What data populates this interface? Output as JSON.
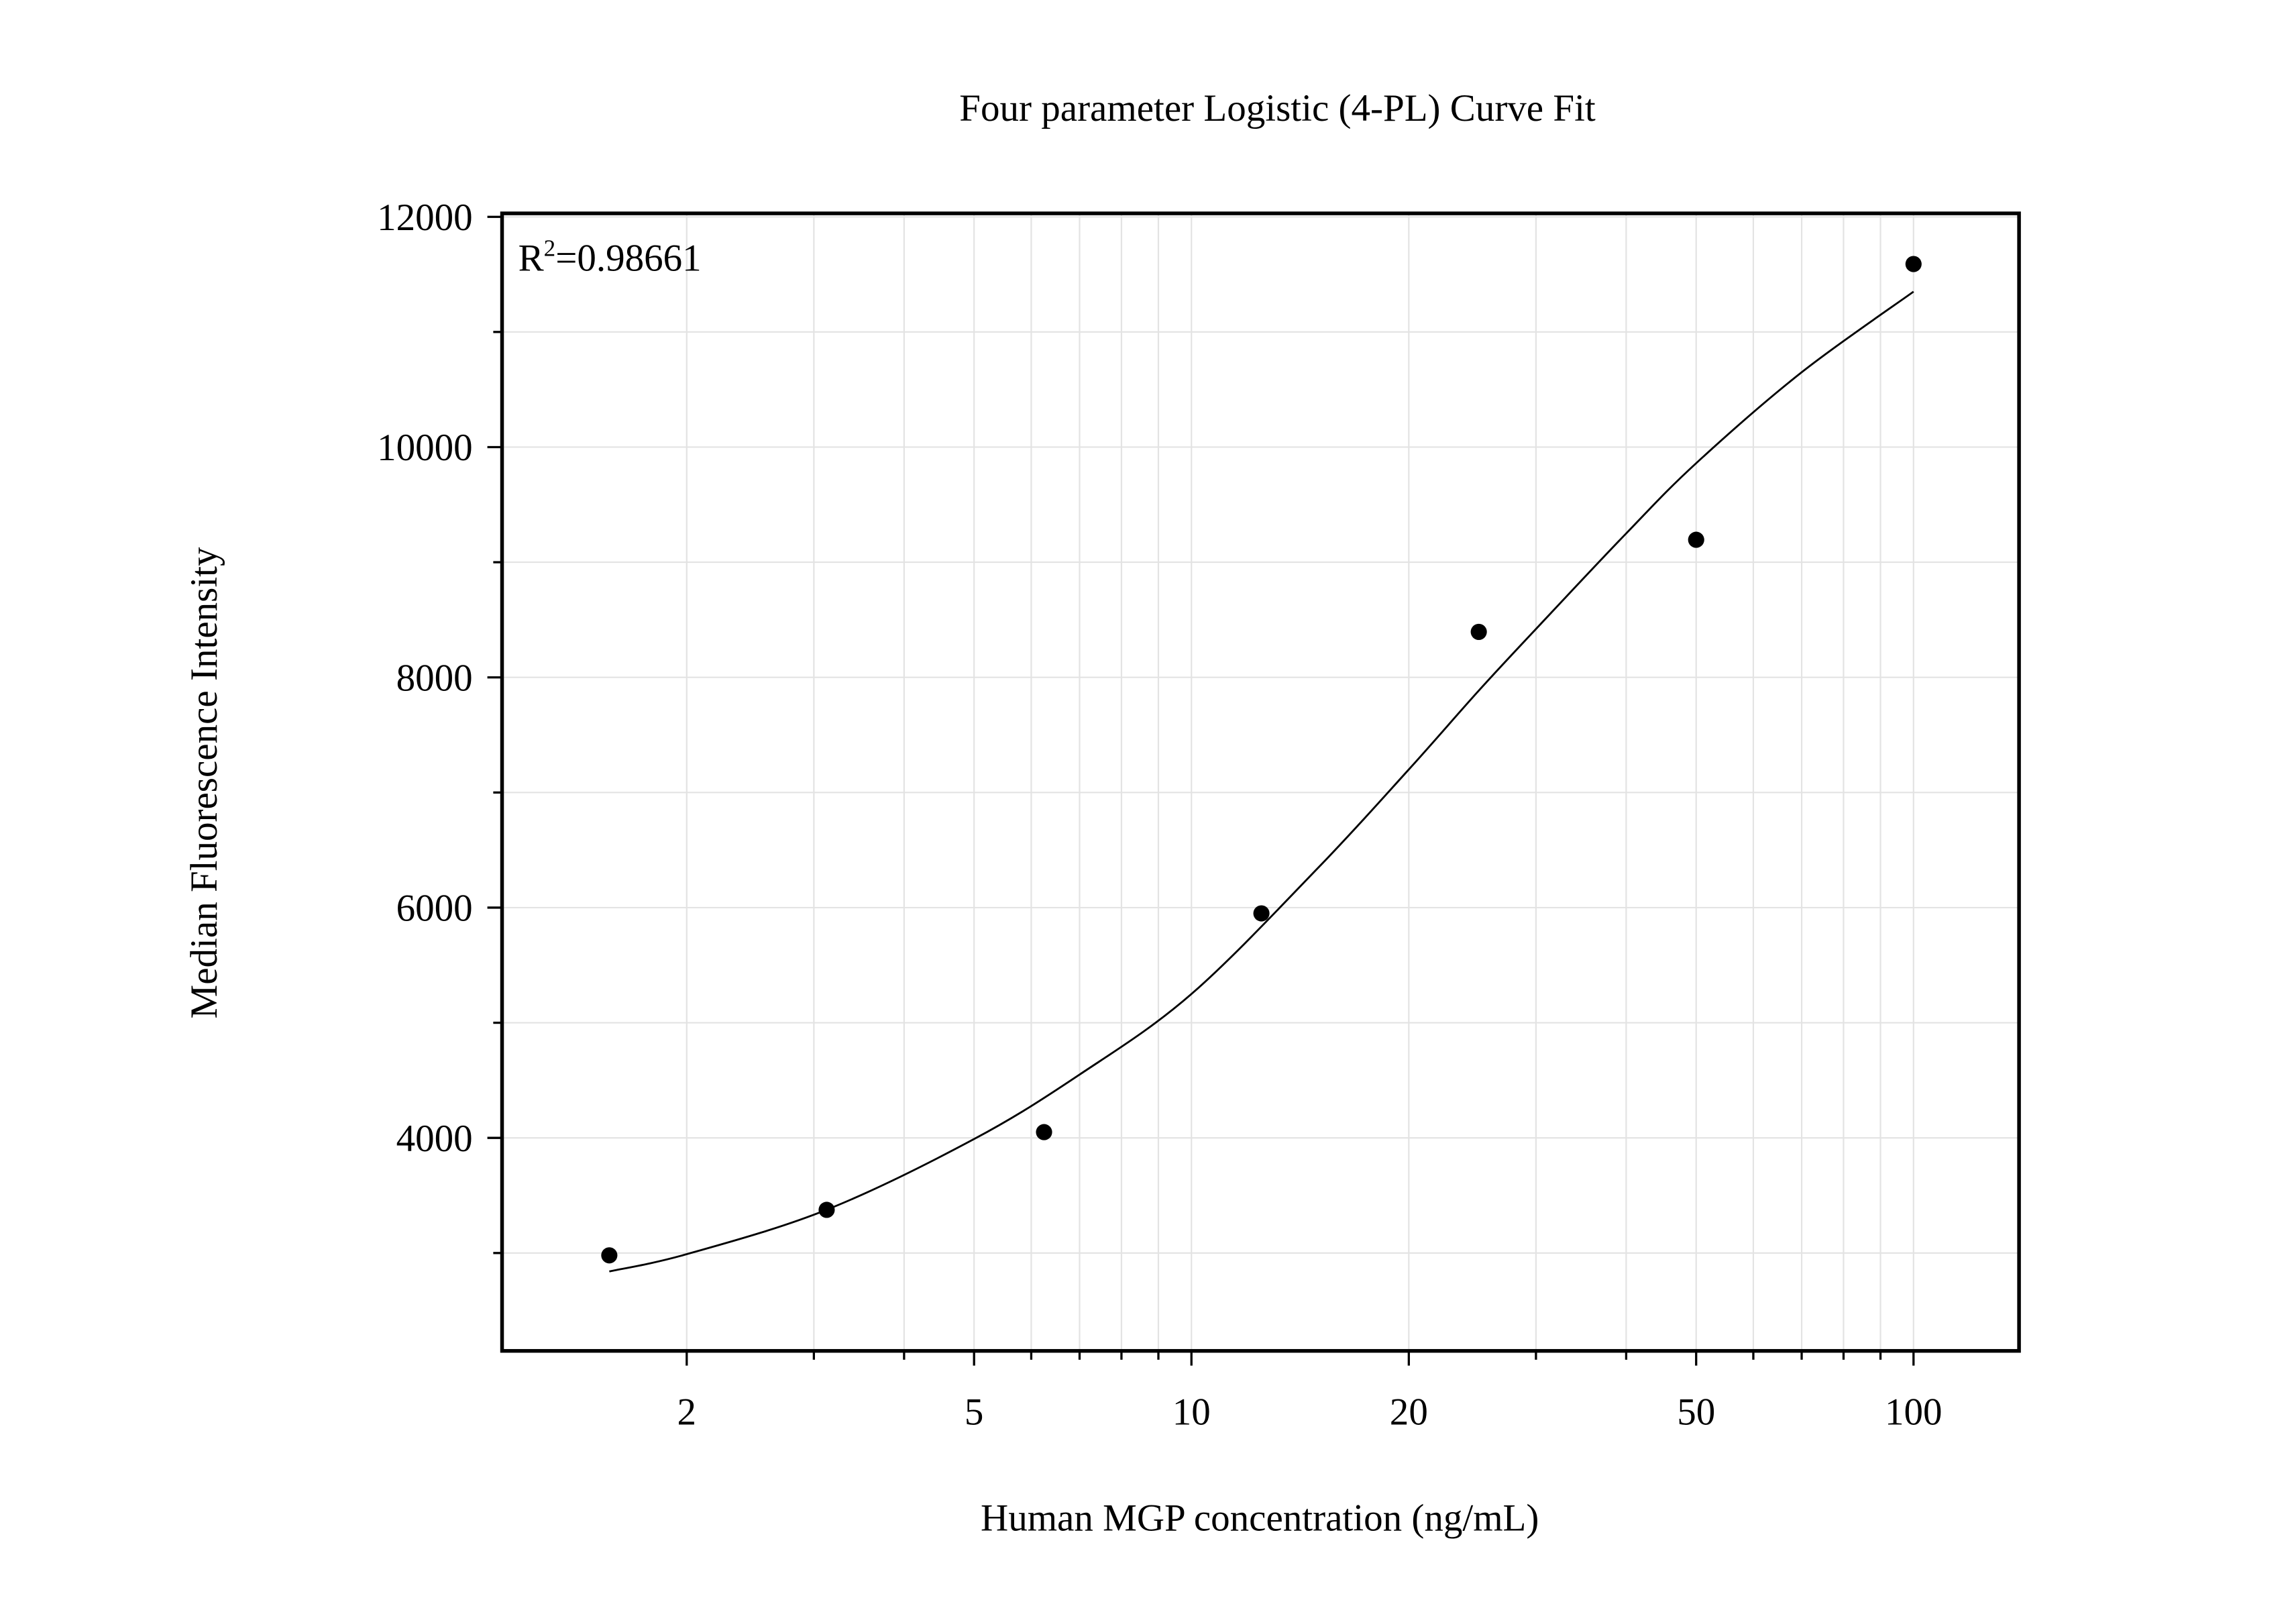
{
  "chart_data": {
    "type": "scatter",
    "title": "Four parameter Logistic (4-PL) Curve Fit",
    "xlabel": "Human MGP concentration (ng/mL)",
    "ylabel": "Median Fluorescence Intensity",
    "x_scale": "log",
    "xlim": [
      1.11,
      140
    ],
    "ylim": [
      2150,
      12030
    ],
    "x_ticks": [
      2,
      5,
      10,
      20,
      50,
      100
    ],
    "x_tick_labels": [
      "2",
      "5",
      "10",
      "20",
      "50",
      "100"
    ],
    "y_ticks": [
      4000,
      6000,
      8000,
      10000,
      12000
    ],
    "y_tick_labels": [
      "4000",
      "6000",
      "8000",
      "10000",
      "12000"
    ],
    "grid": true,
    "annotation": {
      "base": "R",
      "sup": "2",
      "rest": "=0.98661"
    },
    "points": {
      "x": [
        1.5625,
        3.125,
        6.25,
        12.5,
        25,
        50,
        100
      ],
      "y": [
        2980,
        3375,
        4050,
        5950,
        8395,
        9195,
        11590
      ]
    },
    "fit_curve": {
      "x": [
        1.5625,
        2,
        3.125,
        5,
        7,
        10,
        15,
        20,
        25,
        30,
        40,
        50,
        70,
        100
      ],
      "y": [
        2840,
        2990,
        3376,
        3990,
        4550,
        5250,
        6350,
        7200,
        7885,
        8420,
        9250,
        9860,
        10650,
        11350
      ]
    },
    "colors": {
      "points": "#000000",
      "curve": "#000000",
      "grid": "#e3e3e3",
      "axes": "#000000"
    }
  }
}
